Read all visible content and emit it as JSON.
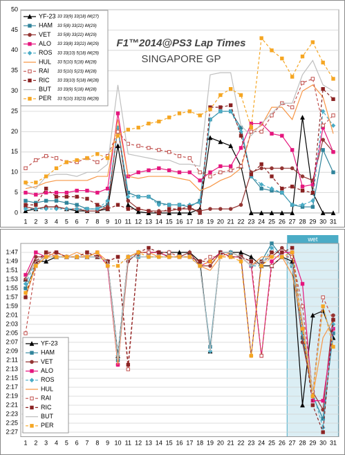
{
  "chart_data": [
    {
      "type": "line",
      "title": "F1™2014@PS3 Lap Times",
      "subtitle": "SINGAPORE GP",
      "x": [
        1,
        2,
        3,
        4,
        5,
        6,
        7,
        8,
        9,
        10,
        11,
        12,
        13,
        14,
        15,
        16,
        17,
        18,
        19,
        20,
        21,
        22,
        23,
        24,
        25,
        26,
        27,
        28,
        29,
        30,
        31
      ],
      "ylim": [
        0,
        50
      ],
      "yticks": [
        0,
        5,
        10,
        15,
        20,
        25,
        30,
        35,
        40,
        45,
        50
      ],
      "grid": true,
      "legend": "upper left",
      "series": [
        {
          "name": "YF-23",
          "strategy": "33 33(9) 33(18) iM(27)",
          "color": "#000000",
          "marker": "triangle",
          "dash": false,
          "values": [
            0.5,
            1,
            1.5,
            1.5,
            1,
            0.5,
            0.5,
            0.5,
            1,
            16.5,
            2,
            0.3,
            0,
            0,
            0,
            0,
            0,
            1,
            18.5,
            17.5,
            16.5,
            11.5,
            0,
            0,
            0,
            0,
            0,
            23.5,
            5,
            0,
            0
          ]
        },
        {
          "name": "HAM",
          "strategy": "33 5(8) 33(22) iM(29)",
          "color": "#31849b",
          "marker": "square",
          "dash": false,
          "values": [
            3,
            2.5,
            3,
            3,
            2.5,
            2,
            1,
            1,
            2,
            21,
            5,
            4,
            4,
            2.5,
            2,
            2,
            1.5,
            3,
            23,
            25,
            25,
            21,
            9,
            6,
            5.5,
            5,
            2,
            1.5,
            1.5,
            15.5,
            10
          ]
        },
        {
          "name": "VET",
          "strategy": "33 5(8) 33(22) iM(29)",
          "color": "#943634",
          "marker": "circle",
          "dash": false,
          "values": [
            1.5,
            1,
            1.5,
            1.5,
            1,
            1,
            0.5,
            0.5,
            1.5,
            21,
            3,
            1,
            0.5,
            0.5,
            0.5,
            1,
            1,
            0.5,
            1,
            1,
            1,
            2,
            10,
            11,
            11,
            11,
            11,
            9,
            8,
            18,
            15
          ]
        },
        {
          "name": "ALO",
          "strategy": "33 33(8) 33(22) iM(29)",
          "color": "#e5177e",
          "marker": "square",
          "dash": false,
          "values": [
            5,
            4.5,
            5,
            5,
            5,
            5.5,
            5.5,
            5,
            6,
            24.5,
            9,
            10,
            10.5,
            11,
            10.5,
            10,
            10,
            8,
            10,
            11.5,
            11.5,
            16,
            22,
            22,
            19.5,
            19,
            15.5,
            6.5,
            7,
            21,
            15
          ]
        },
        {
          "name": "ROS",
          "strategy": "33 33(10) 5(18) iM(29)",
          "color": "#4bacc6",
          "marker": "diamond",
          "dash": true,
          "values": [
            1,
            1,
            1,
            1,
            1,
            1,
            1,
            1,
            3,
            21,
            4,
            4,
            4,
            2,
            2,
            2,
            2,
            2.5,
            23,
            25,
            25,
            20,
            9,
            7,
            6,
            5,
            2,
            2,
            3,
            25,
            21.5
          ]
        },
        {
          "name": "HUL",
          "strategy": "33 5(10) 5(18) iM(28)",
          "color": "#f79646",
          "marker": "none",
          "dash": false,
          "values": [
            6,
            6.5,
            7.5,
            8,
            8,
            8,
            8,
            9,
            9,
            23,
            9,
            8.5,
            9,
            9,
            9,
            8.5,
            8,
            5.5,
            6.5,
            8,
            9,
            11,
            20,
            21.5,
            26,
            26,
            23,
            30,
            31.5,
            28.5,
            19.5
          ]
        },
        {
          "name": "RAI",
          "strategy": "33 5(10) 5(23) iM(28)",
          "color": "#c0504d",
          "marker": "opensquare",
          "dash": true,
          "values": [
            11,
            13,
            14,
            13.5,
            12.5,
            12.5,
            13.5,
            12.5,
            14,
            20,
            17,
            16.5,
            16,
            15.5,
            15,
            14,
            13.5,
            10,
            9,
            10,
            10.5,
            11.5,
            20,
            20,
            24,
            27,
            26,
            32,
            33,
            21.5,
            24
          ]
        },
        {
          "name": "RIC",
          "strategy": "33 33(10) 5(18) iM(28)",
          "color": "#8b2323",
          "marker": "square",
          "dash": true,
          "values": [
            2,
            2,
            6,
            4,
            4,
            4,
            3.5,
            2,
            1,
            2,
            1,
            1,
            0.5,
            0,
            1,
            1,
            1.5,
            0,
            26,
            26,
            26.5,
            19,
            9.5,
            12,
            9,
            6,
            6.5,
            5.5,
            5,
            30.5,
            28
          ]
        },
        {
          "name": "BUT",
          "strategy": "33 33(9) 5(18) iM(28)",
          "color": "#bfbfbf",
          "marker": "none",
          "dash": false,
          "values": [
            7,
            6,
            9,
            9.5,
            9.5,
            9,
            10,
            10,
            12,
            31.5,
            14.5,
            14,
            13.5,
            13,
            13,
            12,
            12,
            11.5,
            34,
            34.5,
            34.5,
            21.5,
            19,
            22,
            24.5,
            27,
            27,
            34,
            37.5,
            31.5,
            30
          ]
        },
        {
          "name": "PER",
          "strategy": "33 5(10) 33(23) iM(28)",
          "color": "#f5a623",
          "marker": "square",
          "dash": true,
          "values": [
            7.5,
            7.5,
            9,
            11,
            12.5,
            13,
            13.5,
            14.5,
            13.5,
            19,
            20.5,
            21,
            22,
            22.5,
            23.5,
            24.5,
            25,
            24,
            25.5,
            29,
            30.5,
            29,
            21,
            43,
            40,
            38,
            33.5,
            38.5,
            42,
            37,
            33
          ]
        }
      ]
    },
    {
      "type": "line",
      "x": [
        1,
        2,
        3,
        4,
        5,
        6,
        7,
        8,
        9,
        10,
        11,
        12,
        13,
        14,
        15,
        16,
        17,
        18,
        19,
        20,
        21,
        22,
        23,
        24,
        25,
        26,
        27,
        28,
        29,
        30,
        31
      ],
      "ylim": [
        105,
        148
      ],
      "y_reversed": true,
      "grid": true,
      "legend": "lower left",
      "yticks": [
        {
          "value": 107,
          "label": "1:47"
        },
        {
          "value": 109,
          "label": "1:49"
        },
        {
          "value": 111,
          "label": "1:51"
        },
        {
          "value": 113,
          "label": "1:53"
        },
        {
          "value": 115,
          "label": "1:55"
        },
        {
          "value": 117,
          "label": "1:57"
        },
        {
          "value": 119,
          "label": "1:59"
        },
        {
          "value": 121,
          "label": "2:01"
        },
        {
          "value": 123,
          "label": "2:03"
        },
        {
          "value": 125,
          "label": "2:05"
        },
        {
          "value": 127,
          "label": "2:07"
        },
        {
          "value": 129,
          "label": "2:09"
        },
        {
          "value": 131,
          "label": "2:11"
        },
        {
          "value": 133,
          "label": "2:13"
        },
        {
          "value": 135,
          "label": "2:15"
        },
        {
          "value": 137,
          "label": "2:17"
        },
        {
          "value": 139,
          "label": "2:19"
        },
        {
          "value": 141,
          "label": "2:21"
        },
        {
          "value": 143,
          "label": "2:23"
        },
        {
          "value": 145,
          "label": "2:25"
        },
        {
          "value": 147,
          "label": "2:27"
        }
      ],
      "wet_band": {
        "label": "wet",
        "from": 26.5,
        "to": 31.5
      },
      "series": [
        {
          "name": "YF-23",
          "color": "#000000",
          "marker": "triangle",
          "dash": false,
          "values": [
            113,
            109,
            109,
            108,
            108,
            108,
            108,
            108,
            109,
            130,
            108,
            107,
            107,
            107,
            107,
            107,
            107,
            109,
            129,
            107,
            107,
            107,
            108,
            110,
            110,
            108,
            109,
            141,
            121,
            120,
            126
          ]
        },
        {
          "name": "HAM",
          "color": "#31849b",
          "marker": "square",
          "dash": false,
          "values": [
            115,
            110,
            108,
            108,
            108,
            108,
            108,
            108,
            109,
            131,
            108,
            108,
            108,
            108,
            108,
            108,
            108,
            110,
            128,
            107,
            107,
            108,
            110,
            109,
            105,
            108,
            110,
            126,
            139,
            144,
            125
          ]
        },
        {
          "name": "VET",
          "color": "#943634",
          "marker": "circle",
          "dash": false,
          "values": [
            113,
            108,
            108,
            107,
            108,
            108,
            108,
            107,
            110,
            132,
            109,
            107,
            107,
            107,
            108,
            108,
            107,
            110,
            110,
            107,
            107,
            108,
            130,
            109,
            108,
            106,
            108,
            127,
            138,
            142,
            121
          ]
        },
        {
          "name": "ALO",
          "color": "#e5177e",
          "marker": "square",
          "dash": false,
          "values": [
            112,
            107,
            108,
            107,
            108,
            108,
            108,
            107,
            110,
            132,
            108,
            107,
            107,
            107,
            108,
            108,
            108,
            110,
            109,
            107,
            108,
            108,
            110,
            130,
            109,
            107,
            107,
            114,
            140,
            140,
            124
          ]
        },
        {
          "name": "ROS",
          "color": "#4bacc6",
          "marker": "diamond",
          "dash": true,
          "values": [
            114,
            109,
            108,
            108,
            108,
            108,
            108,
            108,
            109,
            130,
            108,
            108,
            108,
            108,
            108,
            108,
            108,
            110,
            129,
            107,
            107,
            108,
            110,
            110,
            106,
            108,
            110,
            125,
            138,
            146,
            123
          ]
        },
        {
          "name": "HUL",
          "color": "#f79646",
          "marker": "none",
          "dash": false,
          "values": [
            117,
            110,
            108,
            107,
            108,
            107,
            108,
            107,
            109,
            132,
            108,
            107,
            107,
            108,
            108,
            108,
            108,
            110,
            111,
            108,
            107,
            108,
            110,
            108,
            108,
            108,
            112,
            123,
            139,
            126,
            122
          ]
        },
        {
          "name": "RAI",
          "color": "#c0504d",
          "marker": "opensquare",
          "dash": true,
          "values": [
            125,
            110,
            107,
            108,
            108,
            108,
            107,
            108,
            109,
            108,
            133,
            107,
            107,
            107,
            107,
            108,
            108,
            109,
            108,
            108,
            108,
            108,
            109,
            130,
            110,
            108,
            108,
            119,
            138,
            117,
            122
          ]
        },
        {
          "name": "RIC",
          "color": "#8b2323",
          "marker": "square",
          "dash": true,
          "values": [
            117,
            109,
            107,
            107,
            108,
            108,
            107,
            108,
            109,
            108,
            132,
            107,
            106,
            107,
            108,
            108,
            108,
            109,
            109,
            107,
            108,
            108,
            109,
            110,
            107,
            107,
            106,
            124,
            141,
            147,
            122
          ]
        },
        {
          "name": "BUT",
          "color": "#bfbfbf",
          "marker": "none",
          "dash": false,
          "values": [
            113,
            109,
            108,
            108,
            108,
            108,
            108,
            108,
            109,
            131,
            108,
            108,
            108,
            108,
            108,
            108,
            108,
            110,
            129,
            107,
            107,
            108,
            110,
            109,
            108,
            108,
            110,
            122,
            138,
            119,
            127
          ]
        },
        {
          "name": "PER",
          "color": "#f5a623",
          "marker": "square",
          "dash": true,
          "values": [
            116,
            110,
            108,
            108,
            108,
            108,
            108,
            107,
            110,
            110,
            108,
            107,
            108,
            108,
            108,
            108,
            108,
            110,
            109,
            108,
            108,
            109,
            130,
            110,
            108,
            108,
            107,
            124,
            139,
            119,
            128
          ]
        }
      ]
    }
  ]
}
